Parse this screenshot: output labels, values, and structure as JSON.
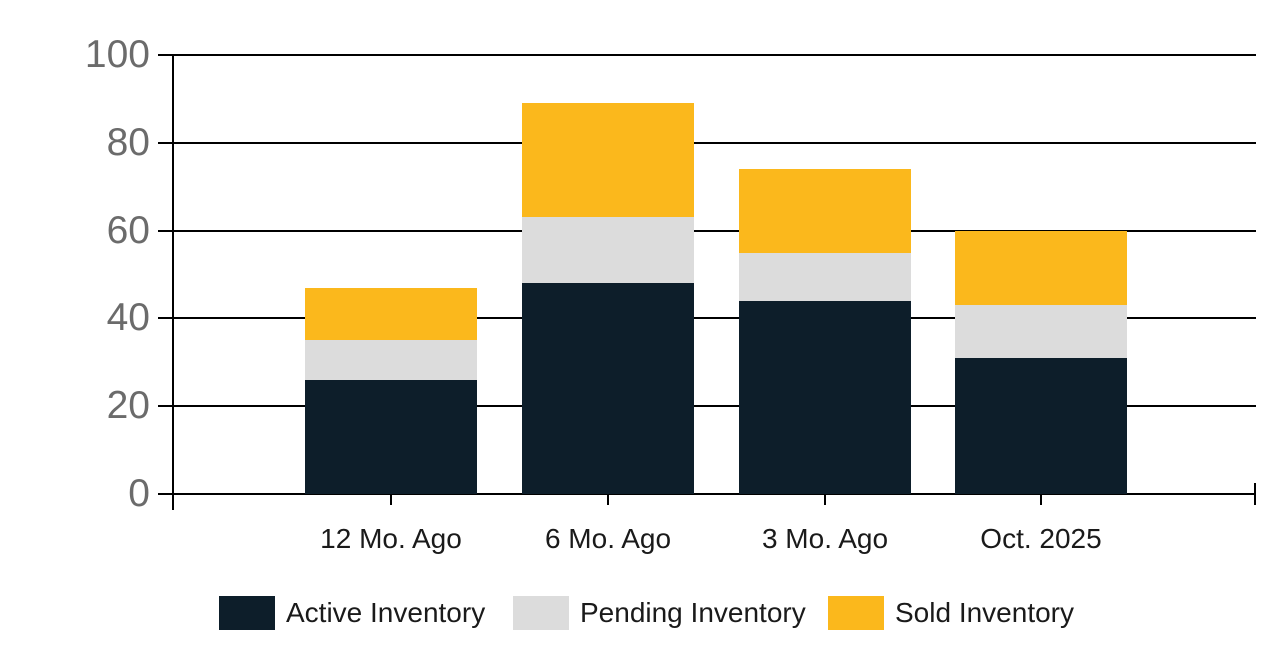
{
  "chart_data": {
    "type": "bar",
    "stacked": true,
    "title": "",
    "categories": [
      "12 Mo. Ago",
      "6 Mo. Ago",
      "3 Mo. Ago",
      "Oct. 2025"
    ],
    "series": [
      {
        "name": "Active Inventory",
        "color": "#0d1e2a",
        "values": [
          26,
          48,
          44,
          31
        ]
      },
      {
        "name": "Pending Inventory",
        "color": "#dcdcdc",
        "values": [
          9,
          15,
          11,
          12
        ]
      },
      {
        "name": "Sold Inventory",
        "color": "#fbb81c",
        "values": [
          12,
          26,
          19,
          17
        ]
      }
    ],
    "stack_totals": [
      47,
      89,
      74,
      60
    ],
    "segment_boundaries": {
      "12 Mo. Ago": [
        26,
        35,
        47
      ],
      "6 Mo. Ago": [
        48,
        63,
        89
      ],
      "3 Mo. Ago": [
        44,
        55,
        74
      ],
      "Oct. 2025": [
        31,
        43,
        60
      ]
    },
    "ylim": [
      0,
      100
    ],
    "yticks": [
      0,
      20,
      40,
      60,
      80,
      100
    ],
    "grid": true,
    "legend_position": "bottom",
    "colors": {
      "axis_tick_label": "#6b6b6b",
      "category_label": "#1a1a1a",
      "line": "#000000",
      "background": "#ffffff"
    }
  }
}
